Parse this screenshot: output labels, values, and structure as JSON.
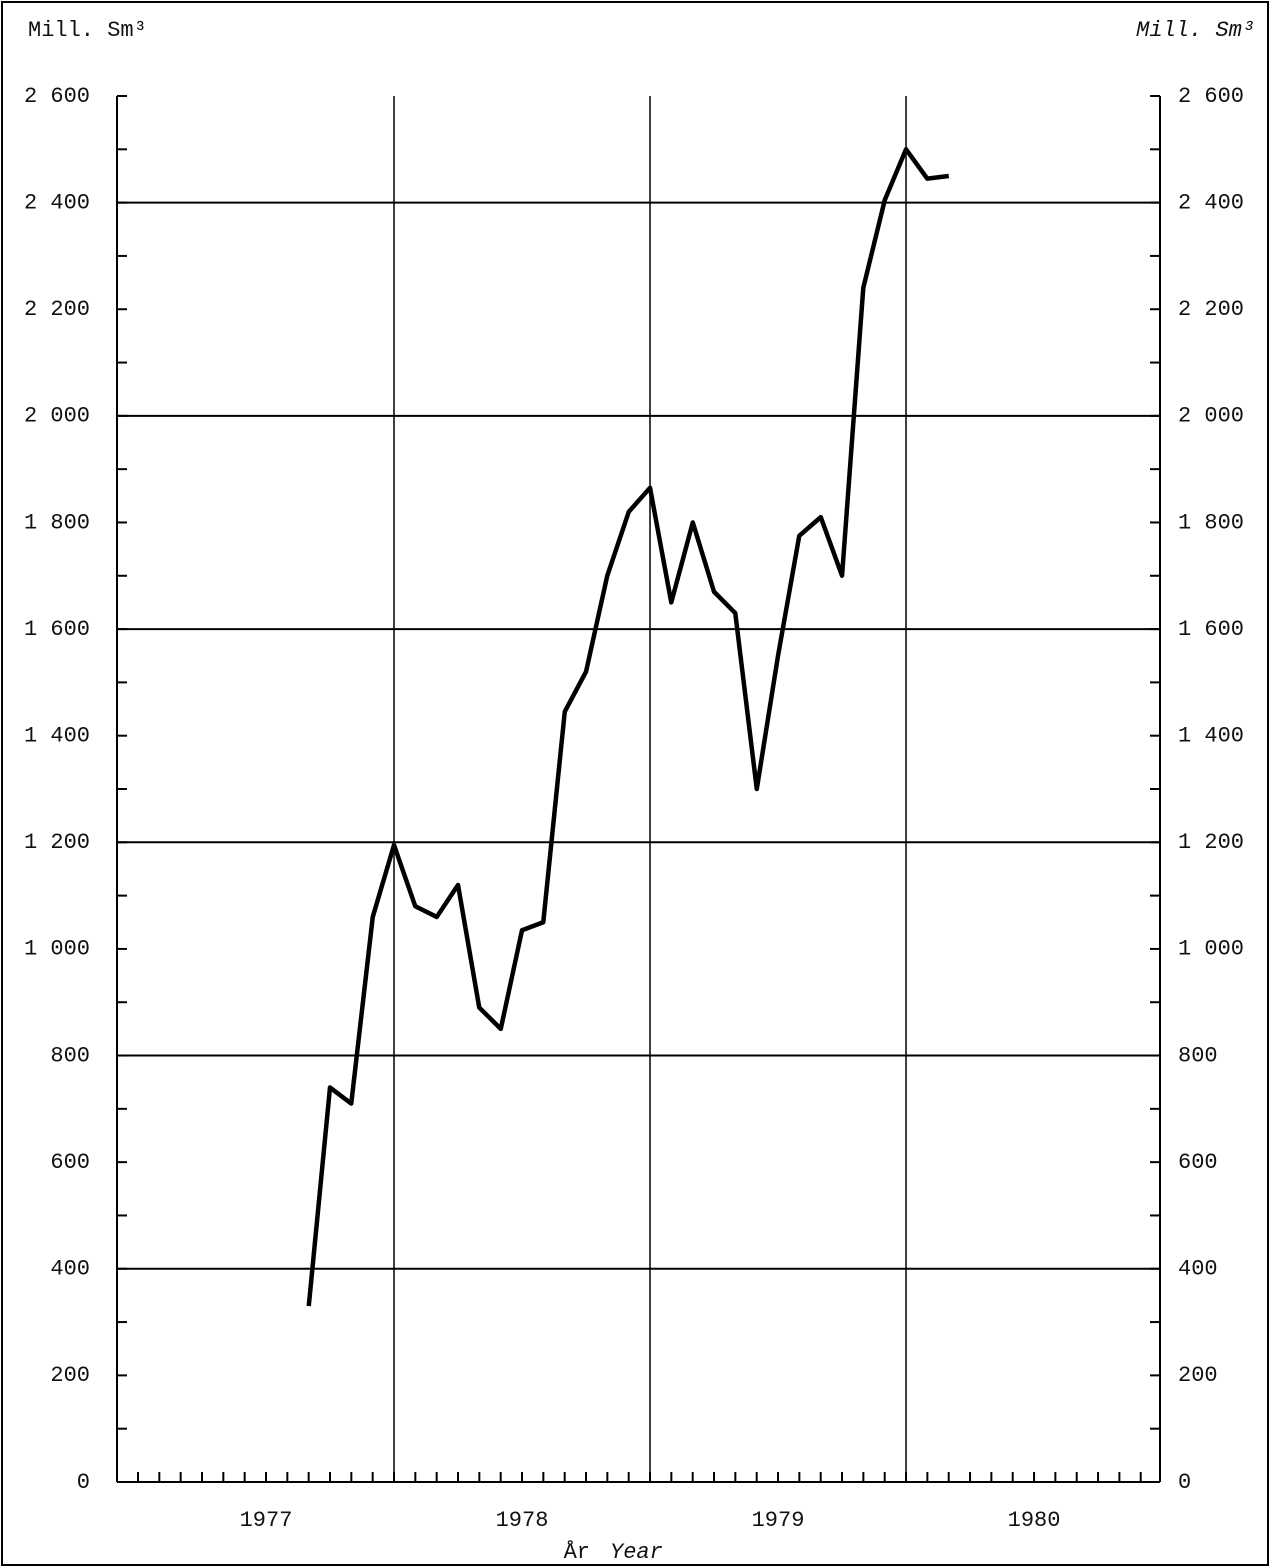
{
  "chart_data": {
    "type": "line",
    "ylabel": "Mill. Sm³",
    "y2label": "Mill. Sm³",
    "xlabel": "År",
    "xlabel_en": "Year",
    "x": [
      1977.667,
      1977.75,
      1977.833,
      1977.917,
      1978,
      1978.083,
      1978.167,
      1978.25,
      1978.333,
      1978.417,
      1978.5,
      1978.583,
      1978.667,
      1978.75,
      1978.833,
      1978.917,
      1979,
      1979.083,
      1979.167,
      1979.25,
      1979.333,
      1979.417,
      1979.5,
      1979.583,
      1979.667,
      1979.75,
      1979.833,
      1979.917,
      1980,
      1980.083,
      1980.167
    ],
    "values": [
      330,
      740,
      710,
      1060,
      1195,
      1080,
      1060,
      1120,
      890,
      850,
      1035,
      1050,
      1445,
      1520,
      1700,
      1820,
      1865,
      1650,
      1800,
      1670,
      1630,
      1300,
      1550,
      1775,
      1810,
      1700,
      2240,
      2405,
      2500,
      2445,
      2450
    ],
    "color": "#000000",
    "xlim": [
      1976.918,
      1980.992
    ],
    "xticks": [
      {
        "value": 1977.5,
        "label": "1977"
      },
      {
        "value": 1978.5,
        "label": "1978"
      },
      {
        "value": 1979.5,
        "label": "1979"
      },
      {
        "value": 1980.5,
        "label": "1980"
      }
    ],
    "xgrid": [
      1978,
      1979,
      1980
    ],
    "ylim": [
      0,
      2600
    ],
    "yticks": [
      0,
      200,
      400,
      600,
      800,
      {
        "value": 1000,
        "label": "1 000"
      },
      {
        "value": 1200,
        "label": "1 200"
      },
      {
        "value": 1400,
        "label": "1 400"
      },
      {
        "value": 1600,
        "label": "1 600"
      },
      {
        "value": 1800,
        "label": "1 800"
      },
      {
        "value": 2000,
        "label": "2 000"
      },
      {
        "value": 2200,
        "label": "2 200"
      },
      {
        "value": 2400,
        "label": "2 400"
      },
      {
        "value": 2600,
        "label": "2 600"
      }
    ],
    "y2lim": [
      0,
      2600
    ],
    "y2ticks": [
      0,
      200,
      400,
      600,
      800,
      {
        "value": 1000,
        "label": "1 000"
      },
      {
        "value": 1200,
        "label": "1 200"
      },
      {
        "value": 1400,
        "label": "1 400"
      },
      {
        "value": 1600,
        "label": "1 600"
      },
      {
        "value": 1800,
        "label": "1 800"
      },
      {
        "value": 2000,
        "label": "2 000"
      },
      {
        "value": 2200,
        "label": "2 200"
      },
      {
        "value": 2400,
        "label": "2 400"
      },
      {
        "value": 2600,
        "label": "2 600"
      }
    ],
    "ygrid": [
      400,
      800,
      1200,
      1600,
      2000,
      2400
    ]
  }
}
